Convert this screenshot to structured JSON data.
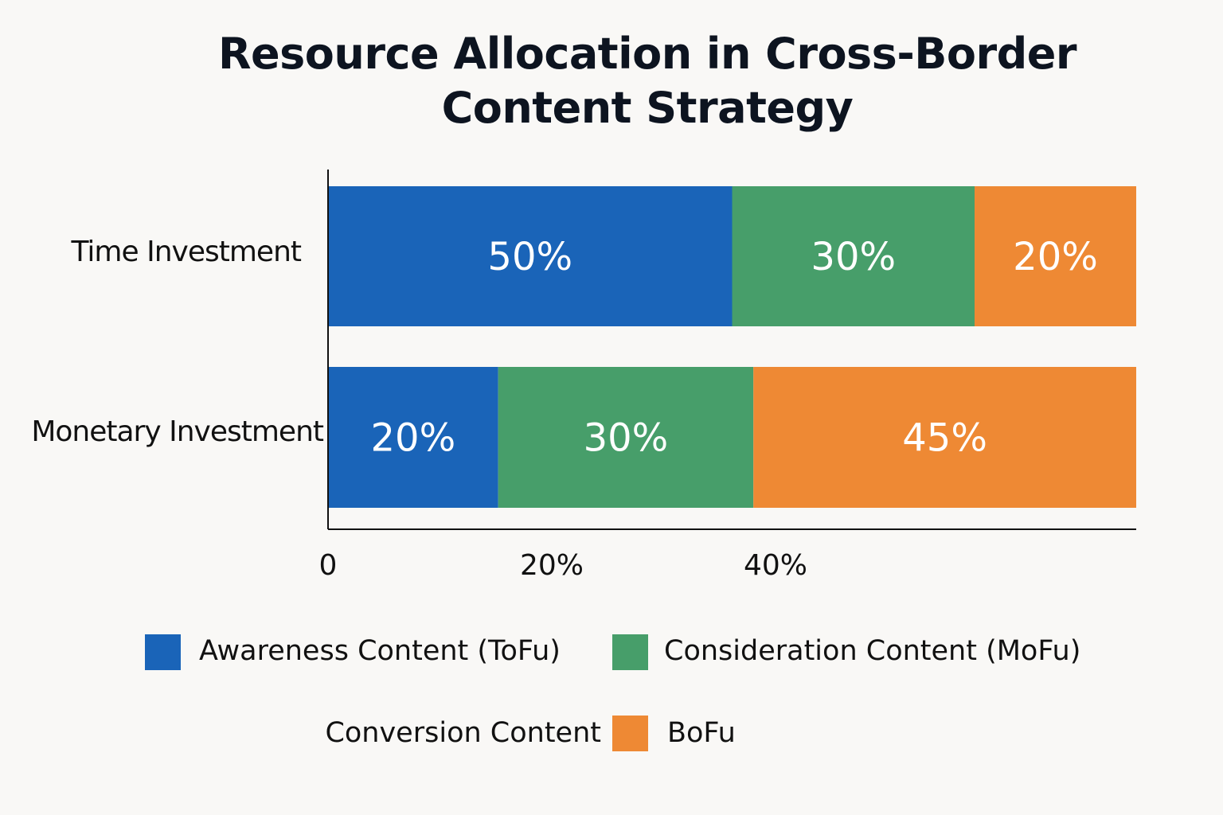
{
  "chart_data": {
    "type": "bar",
    "orientation": "horizontal",
    "stacked": true,
    "title": "Resource Allocation in Cross-Border Content Strategy",
    "title_lines": [
      "Resource Allocation in Cross-Border",
      "Content Strategy"
    ],
    "categories": [
      "Time Investment",
      "Monetary Investment"
    ],
    "series": [
      {
        "name": "Awareness Content (ToFu)",
        "color": "#1a64b8",
        "values": [
          50,
          20
        ],
        "labels": [
          "50%",
          "20%"
        ]
      },
      {
        "name": "Consideration Content (MoFu)",
        "color": "#479e6a",
        "values": [
          30,
          30
        ],
        "labels": [
          "30%",
          "30%"
        ]
      },
      {
        "name": "Conversion Content BoFu",
        "color": "#ee8934",
        "values": [
          20,
          45
        ],
        "labels": [
          "20%",
          "45%"
        ]
      }
    ],
    "x_ticks": [
      {
        "value": 0,
        "label": "0"
      },
      {
        "value": 20,
        "label": "20%"
      },
      {
        "value": 40,
        "label": "40%"
      }
    ],
    "legend": {
      "placement": "bottom",
      "items": [
        {
          "label": "Awareness Content (ToFu)",
          "color": "#1a64b8"
        },
        {
          "label": "Consideration Content (MoFu)",
          "color": "#479e6a"
        },
        {
          "label_before": "Conversion Content",
          "label_after": "BoFu",
          "color": "#ee8934"
        }
      ]
    },
    "xlabel": "",
    "ylabel": "",
    "grid": false
  }
}
